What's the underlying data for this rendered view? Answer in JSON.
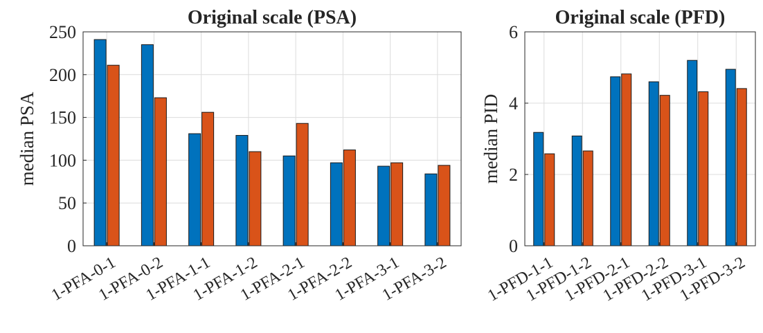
{
  "chart_data": [
    {
      "type": "bar",
      "title": "Original scale (PSA)",
      "xlabel": "",
      "ylabel": "median PSA",
      "ylim": [
        0,
        250
      ],
      "yticks": [
        0,
        50,
        100,
        150,
        200,
        250
      ],
      "grid": true,
      "categories": [
        "1-PFA-0-1",
        "1-PFA-0-2",
        "1-PFA-1-1",
        "1-PFA-1-2",
        "1-PFA-2-1",
        "1-PFA-2-2",
        "1-PFA-3-1",
        "1-PFA-3-2"
      ],
      "series": [
        {
          "color": "#0072BD",
          "values": [
            241,
            235,
            131,
            129,
            105,
            97,
            93,
            84
          ]
        },
        {
          "color": "#D95319",
          "values": [
            211,
            173,
            156,
            110,
            143,
            112,
            97,
            94
          ]
        }
      ]
    },
    {
      "type": "bar",
      "title": "Original scale (PFD)",
      "xlabel": "",
      "ylabel": "median PID",
      "ylim": [
        0,
        6
      ],
      "yticks": [
        0,
        2,
        4,
        6
      ],
      "grid": true,
      "categories": [
        "1-PFD-1-1",
        "1-PFD-1-2",
        "1-PFD-2-1",
        "1-PFD-2-2",
        "1-PFD-3-1",
        "1-PFD-3-2"
      ],
      "series": [
        {
          "color": "#0072BD",
          "values": [
            3.18,
            3.08,
            4.74,
            4.6,
            5.2,
            4.95
          ]
        },
        {
          "color": "#D95319",
          "values": [
            2.58,
            2.66,
            4.82,
            4.22,
            4.32,
            4.41
          ]
        }
      ]
    }
  ]
}
